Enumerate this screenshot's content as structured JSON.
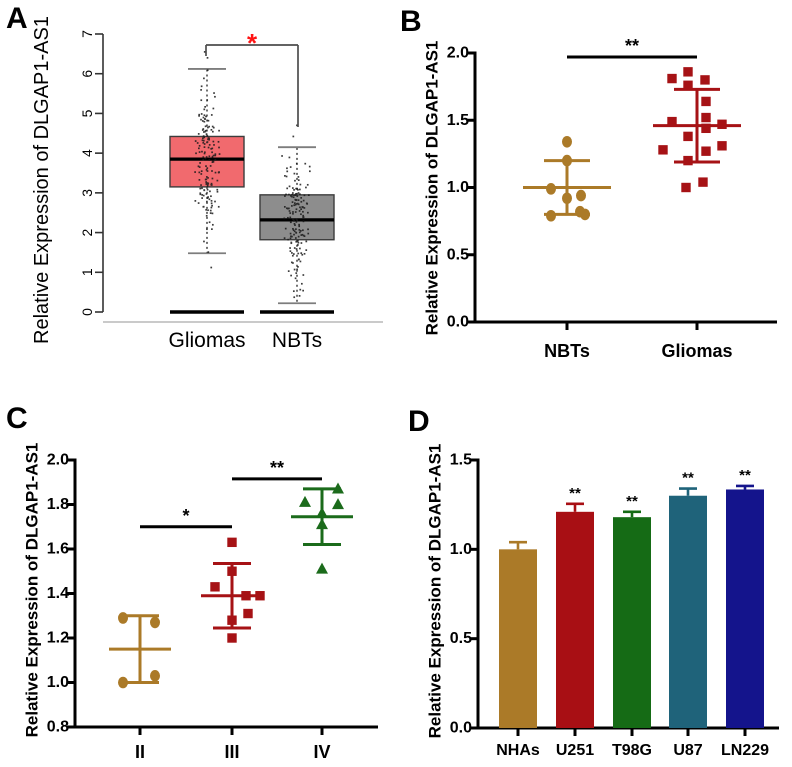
{
  "figure": {
    "background": "#ffffff",
    "gene": "DLGAP1-AS1"
  },
  "chart_data": {
    "panels": [
      {
        "label": "A",
        "type": "box-scatter",
        "ylabel": "Relative Expression of DLGAP1-AS1",
        "ylim": [
          0,
          7
        ],
        "yticks": [
          0,
          1,
          2,
          3,
          4,
          5,
          6,
          7
        ],
        "categories": [
          "Gliomas",
          "NBTs"
        ],
        "significance": {
          "label": "*",
          "color": "#ff1414"
        },
        "groups": [
          {
            "name": "Gliomas",
            "fill": "#F16A6E",
            "border": "#3c3c3c",
            "median": 3.85,
            "q1": 3.15,
            "q3": 4.42,
            "whisker_low": 1.48,
            "whisker_high": 6.12,
            "baseline_value": 0,
            "scatter": {
              "n": 165,
              "mean": 3.82,
              "sd": 0.95,
              "min": 1.45,
              "max": 6.12,
              "outliers": [
                6.55,
                6.4,
                1.12
              ]
            }
          },
          {
            "name": "NBTs",
            "fill": "#8D8D8D",
            "border": "#3c3c3c",
            "median": 2.32,
            "q1": 1.82,
            "q3": 2.95,
            "whisker_low": 0.22,
            "whisker_high": 4.15,
            "baseline_value": 0,
            "scatter": {
              "n": 165,
              "mean": 2.38,
              "sd": 0.82,
              "min": 0.22,
              "max": 4.15,
              "outliers": [
                4.7,
                4.42
              ]
            }
          }
        ]
      },
      {
        "label": "B",
        "type": "scatter-mean",
        "ylabel": "Relative Expression of DLGAP1-AS1",
        "ylim": [
          0,
          2
        ],
        "yticks": [
          "0.0",
          "0.5",
          "1.0",
          "1.5",
          "2.0"
        ],
        "groups": [
          {
            "name": "NBTs",
            "color": "#AB7A28",
            "marker": "circle",
            "mean": 1.0,
            "err_low": 0.8,
            "err_high": 1.2,
            "points": [
              [
                1.34,
                0
              ],
              [
                1.2,
                0
              ],
              [
                0.99,
                -16
              ],
              [
                0.92,
                0
              ],
              [
                0.94,
                14
              ],
              [
                0.79,
                -16
              ],
              [
                0.82,
                13
              ],
              [
                0.8,
                18
              ]
            ]
          },
          {
            "name": "Gliomas",
            "color": "#A61215",
            "marker": "square",
            "mean": 1.46,
            "err_low": 1.19,
            "err_high": 1.73,
            "points": [
              [
                1.86,
                -9
              ],
              [
                1.81,
                -25
              ],
              [
                1.8,
                8
              ],
              [
                1.76,
                -9
              ],
              [
                1.64,
                9
              ],
              [
                1.52,
                9
              ],
              [
                1.49,
                -25
              ],
              [
                1.47,
                25
              ],
              [
                1.44,
                9
              ],
              [
                1.38,
                -9
              ],
              [
                1.31,
                25
              ],
              [
                1.28,
                -34
              ],
              [
                1.27,
                9
              ],
              [
                1.2,
                -9
              ],
              [
                1.04,
                6
              ],
              [
                1.0,
                -11
              ]
            ]
          }
        ],
        "significance": [
          {
            "label": "**",
            "from": 0,
            "to": 1,
            "y": 1.97
          }
        ]
      },
      {
        "label": "C",
        "type": "scatter-mean",
        "ylabel": "Relative Expression of DLGAP1-AS1",
        "ylim": [
          0.8,
          2.0
        ],
        "yticks": [
          "0.8",
          "1.0",
          "1.2",
          "1.4",
          "1.6",
          "1.8",
          "2.0"
        ],
        "groups": [
          {
            "name": "II",
            "color": "#AB7A28",
            "marker": "circle",
            "mean": 1.15,
            "err_low": 1.0,
            "err_high": 1.3,
            "points": [
              [
                1.29,
                -17
              ],
              [
                1.27,
                15
              ],
              [
                1.03,
                15
              ],
              [
                1.0,
                -17
              ]
            ]
          },
          {
            "name": "III",
            "color": "#A61215",
            "marker": "square",
            "mean": 1.39,
            "err_low": 1.245,
            "err_high": 1.535,
            "points": [
              [
                1.63,
                0
              ],
              [
                1.5,
                0
              ],
              [
                1.43,
                -17
              ],
              [
                1.39,
                14
              ],
              [
                1.39,
                28
              ],
              [
                1.31,
                16
              ],
              [
                1.28,
                0
              ],
              [
                1.2,
                0
              ]
            ]
          },
          {
            "name": "IV",
            "color": "#1B6B1B",
            "marker": "triangle",
            "mean": 1.745,
            "err_low": 1.62,
            "err_high": 1.87,
            "points": [
              [
                1.87,
                16
              ],
              [
                1.81,
                -17
              ],
              [
                1.8,
                16
              ],
              [
                1.76,
                0
              ],
              [
                1.71,
                0
              ],
              [
                1.51,
                0
              ]
            ]
          }
        ],
        "significance": [
          {
            "label": "*",
            "from": 0,
            "to": 1,
            "y": 1.7
          },
          {
            "label": "**",
            "from": 1,
            "to": 2,
            "y": 1.915
          }
        ]
      },
      {
        "label": "D",
        "type": "bar",
        "ylabel": "Relative Expression of DLGAP1-AS1",
        "ylim": [
          0,
          1.5
        ],
        "yticks": [
          "0.0",
          "0.5",
          "1.0",
          "1.5"
        ],
        "categories": [
          "NHAs",
          "U251",
          "T98G",
          "U87",
          "LN229"
        ],
        "values": [
          1.0,
          1.21,
          1.18,
          1.3,
          1.335
        ],
        "errors": [
          0.04,
          0.045,
          0.03,
          0.04,
          0.02
        ],
        "colors": [
          "#AB7A28",
          "#A80F14",
          "#156B15",
          "#1F637A",
          "#14148C"
        ],
        "significance_labels": [
          "",
          "**",
          "**",
          "**",
          "**"
        ]
      }
    ]
  }
}
